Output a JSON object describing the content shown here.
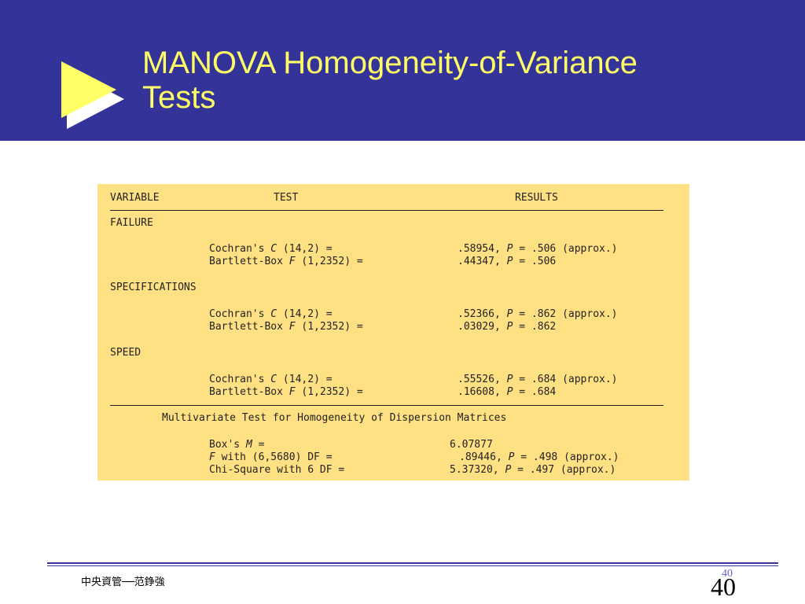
{
  "slide": {
    "title_line1": "MANOVA Homogeneity-of-Variance",
    "title_line2": "Tests"
  },
  "table": {
    "col_variable": "VARIABLE",
    "col_test": "TEST",
    "col_results": "RESULTS",
    "groups": [
      {
        "name": "FAILURE",
        "rows": [
          {
            "pre": "Cochran's ",
            "stat": "C",
            "post": " (14,2) =",
            "val": ".58954, ",
            "p": "P",
            "pres": " = .506 (approx.)"
          },
          {
            "pre": "Bartlett-Box ",
            "stat": "F",
            "post": " (1,2352) =",
            "val": ".44347, ",
            "p": "P",
            "pres": " = .506"
          }
        ]
      },
      {
        "name": "SPECIFICATIONS",
        "rows": [
          {
            "pre": "Cochran's ",
            "stat": "C",
            "post": " (14,2) =",
            "val": ".52366, ",
            "p": "P",
            "pres": " = .862 (approx.)"
          },
          {
            "pre": "Bartlett-Box ",
            "stat": "F",
            "post": " (1,2352) =",
            "val": ".03029, ",
            "p": "P",
            "pres": " = .862"
          }
        ]
      },
      {
        "name": "SPEED",
        "rows": [
          {
            "pre": "Cochran's ",
            "stat": "C",
            "post": " (14,2) =",
            "val": ".55526, ",
            "p": "P",
            "pres": " = .684 (approx.)"
          },
          {
            "pre": "Bartlett-Box ",
            "stat": "F",
            "post": " (1,2352) =",
            "val": ".16608, ",
            "p": "P",
            "pres": " = .684"
          }
        ]
      }
    ],
    "multivariate_heading": "Multivariate Test for Homogeneity of Dispersion Matrices",
    "multivariate_rows": [
      {
        "pre": "Box's ",
        "stat": "M",
        "post": " =",
        "val": "6.07877",
        "p": "",
        "pres": ""
      },
      {
        "pre": "",
        "stat": "F",
        "post": " with (6,5680) DF =",
        "val": ".89446, ",
        "p": "P",
        "pres": " = .498 (approx.)"
      },
      {
        "pre": "Chi-Square with 6 DF =",
        "stat": "",
        "post": "",
        "val": "5.37320, ",
        "p": "P",
        "pres": " = .497 (approx.)"
      }
    ]
  },
  "footer": {
    "left_text": "中央資管──范錚強",
    "slide_number_small": "40",
    "slide_number": "40"
  },
  "colors": {
    "header_bg": "#333399",
    "title_text": "#ffff66",
    "table_bg": "#ffe082",
    "bullet_fill": "#ffff66"
  },
  "icons": {
    "bullet": "play-triangle-icon"
  }
}
